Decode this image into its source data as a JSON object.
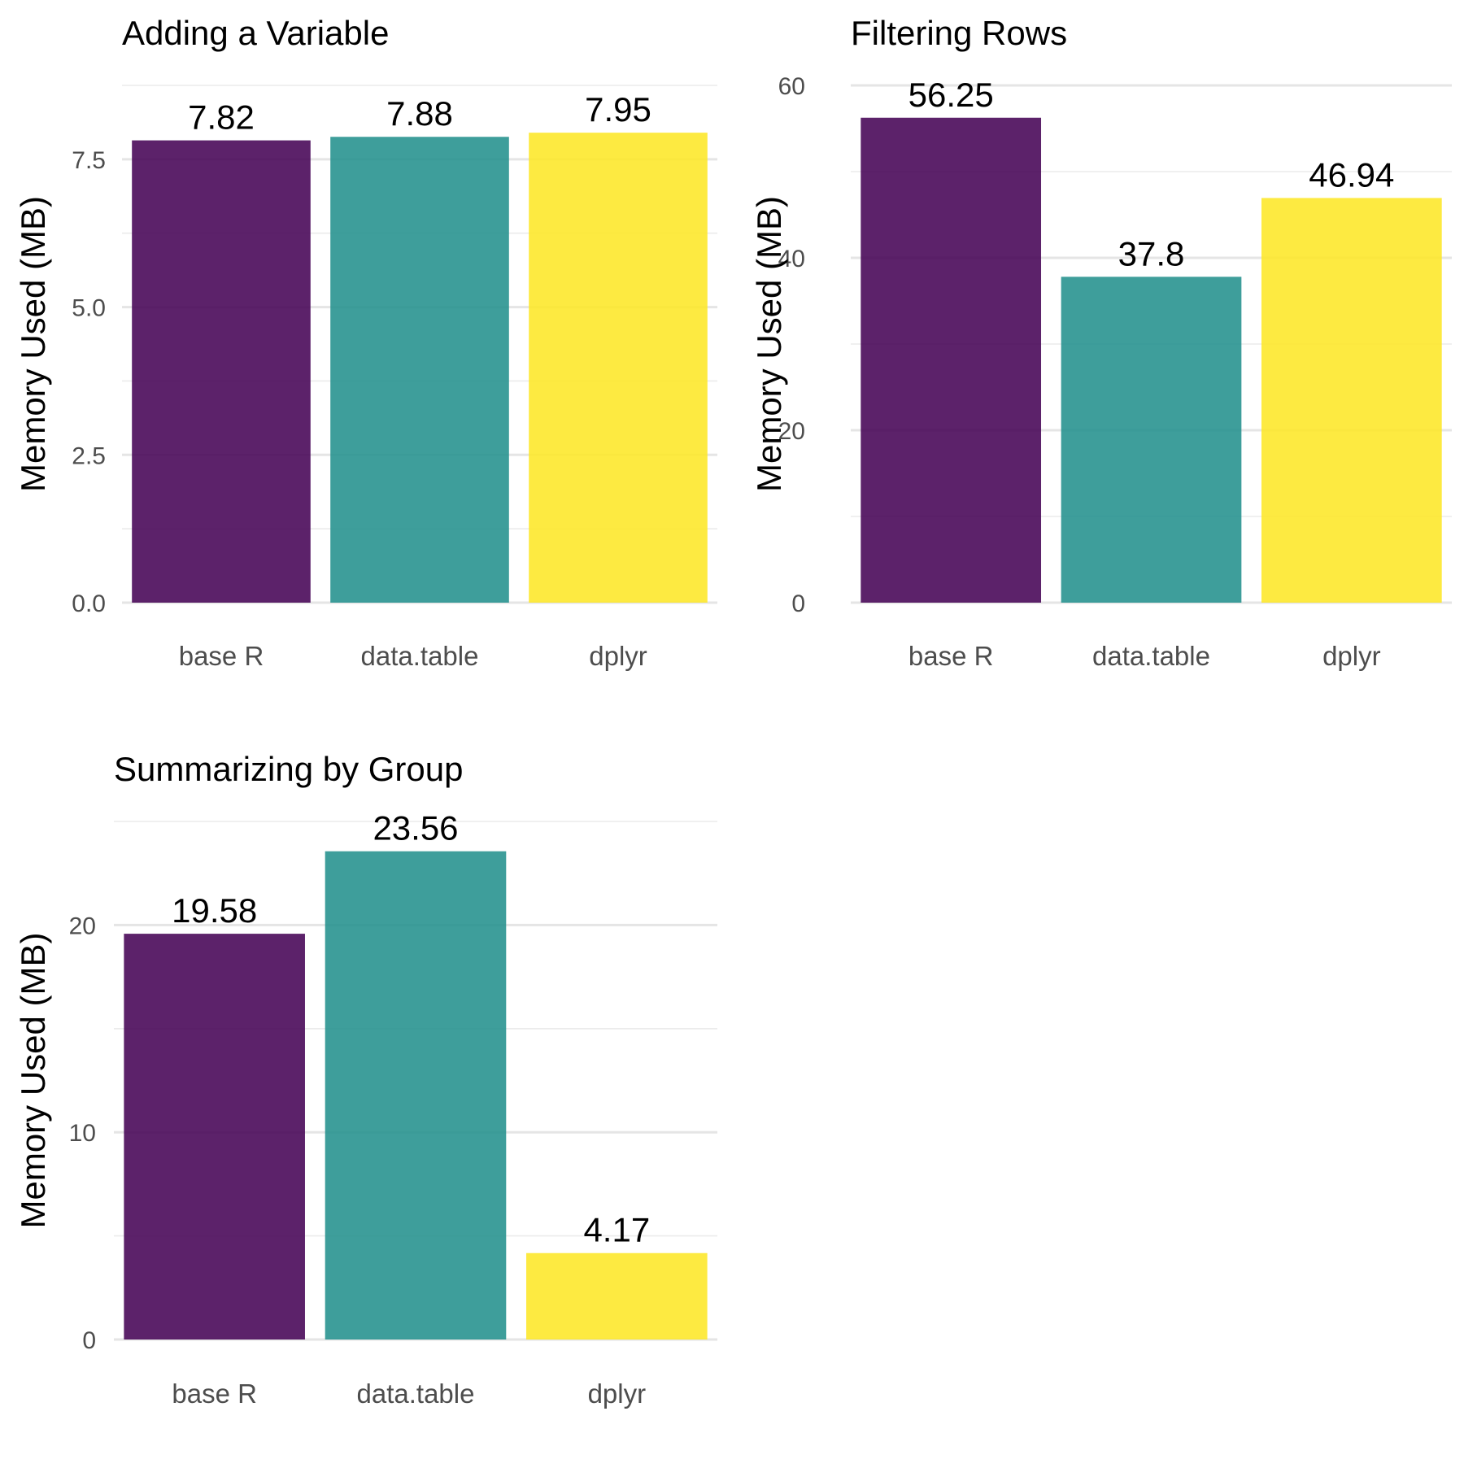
{
  "colors": {
    "base R": "#440154",
    "data.table": "#21908C",
    "dplyr": "#FDE725"
  },
  "bar_opacity": 0.87,
  "chart_data": [
    {
      "type": "bar",
      "title": "Adding a Variable",
      "ylabel": "Memory Used (MB)",
      "categories": [
        "base R",
        "data.table",
        "dplyr"
      ],
      "values": [
        7.82,
        7.88,
        7.95
      ],
      "value_labels": [
        "7.82",
        "7.88",
        "7.95"
      ],
      "ylim": [
        0,
        8.75
      ],
      "yticks": [
        0,
        2.5,
        5,
        7.5
      ],
      "ytick_labels": [
        "0.0",
        "2.5",
        "5.0",
        "7.5"
      ],
      "minor_yticks": [
        1.25,
        3.75,
        6.25,
        8.75
      ],
      "grid": true,
      "legend": "none"
    },
    {
      "type": "bar",
      "title": "Filtering Rows",
      "ylabel": "Memory Used (MB)",
      "categories": [
        "base R",
        "data.table",
        "dplyr"
      ],
      "values": [
        56.25,
        37.8,
        46.94
      ],
      "value_labels": [
        "56.25",
        "37.8",
        "46.94"
      ],
      "ylim": [
        0,
        60
      ],
      "yticks": [
        0,
        20,
        40,
        60
      ],
      "ytick_labels": [
        "0",
        "20",
        "40",
        "60"
      ],
      "minor_yticks": [
        10,
        30,
        50
      ],
      "grid": true,
      "legend": "none"
    },
    {
      "type": "bar",
      "title": "Summarizing by Group",
      "ylabel": "Memory Used (MB)",
      "categories": [
        "base R",
        "data.table",
        "dplyr"
      ],
      "values": [
        19.58,
        23.56,
        4.17
      ],
      "value_labels": [
        "19.58",
        "23.56",
        "4.17"
      ],
      "ylim": [
        0,
        25
      ],
      "yticks": [
        0,
        10,
        20
      ],
      "ytick_labels": [
        "0",
        "10",
        "20"
      ],
      "minor_yticks": [
        5,
        15,
        25
      ],
      "grid": true,
      "legend": "none"
    }
  ]
}
